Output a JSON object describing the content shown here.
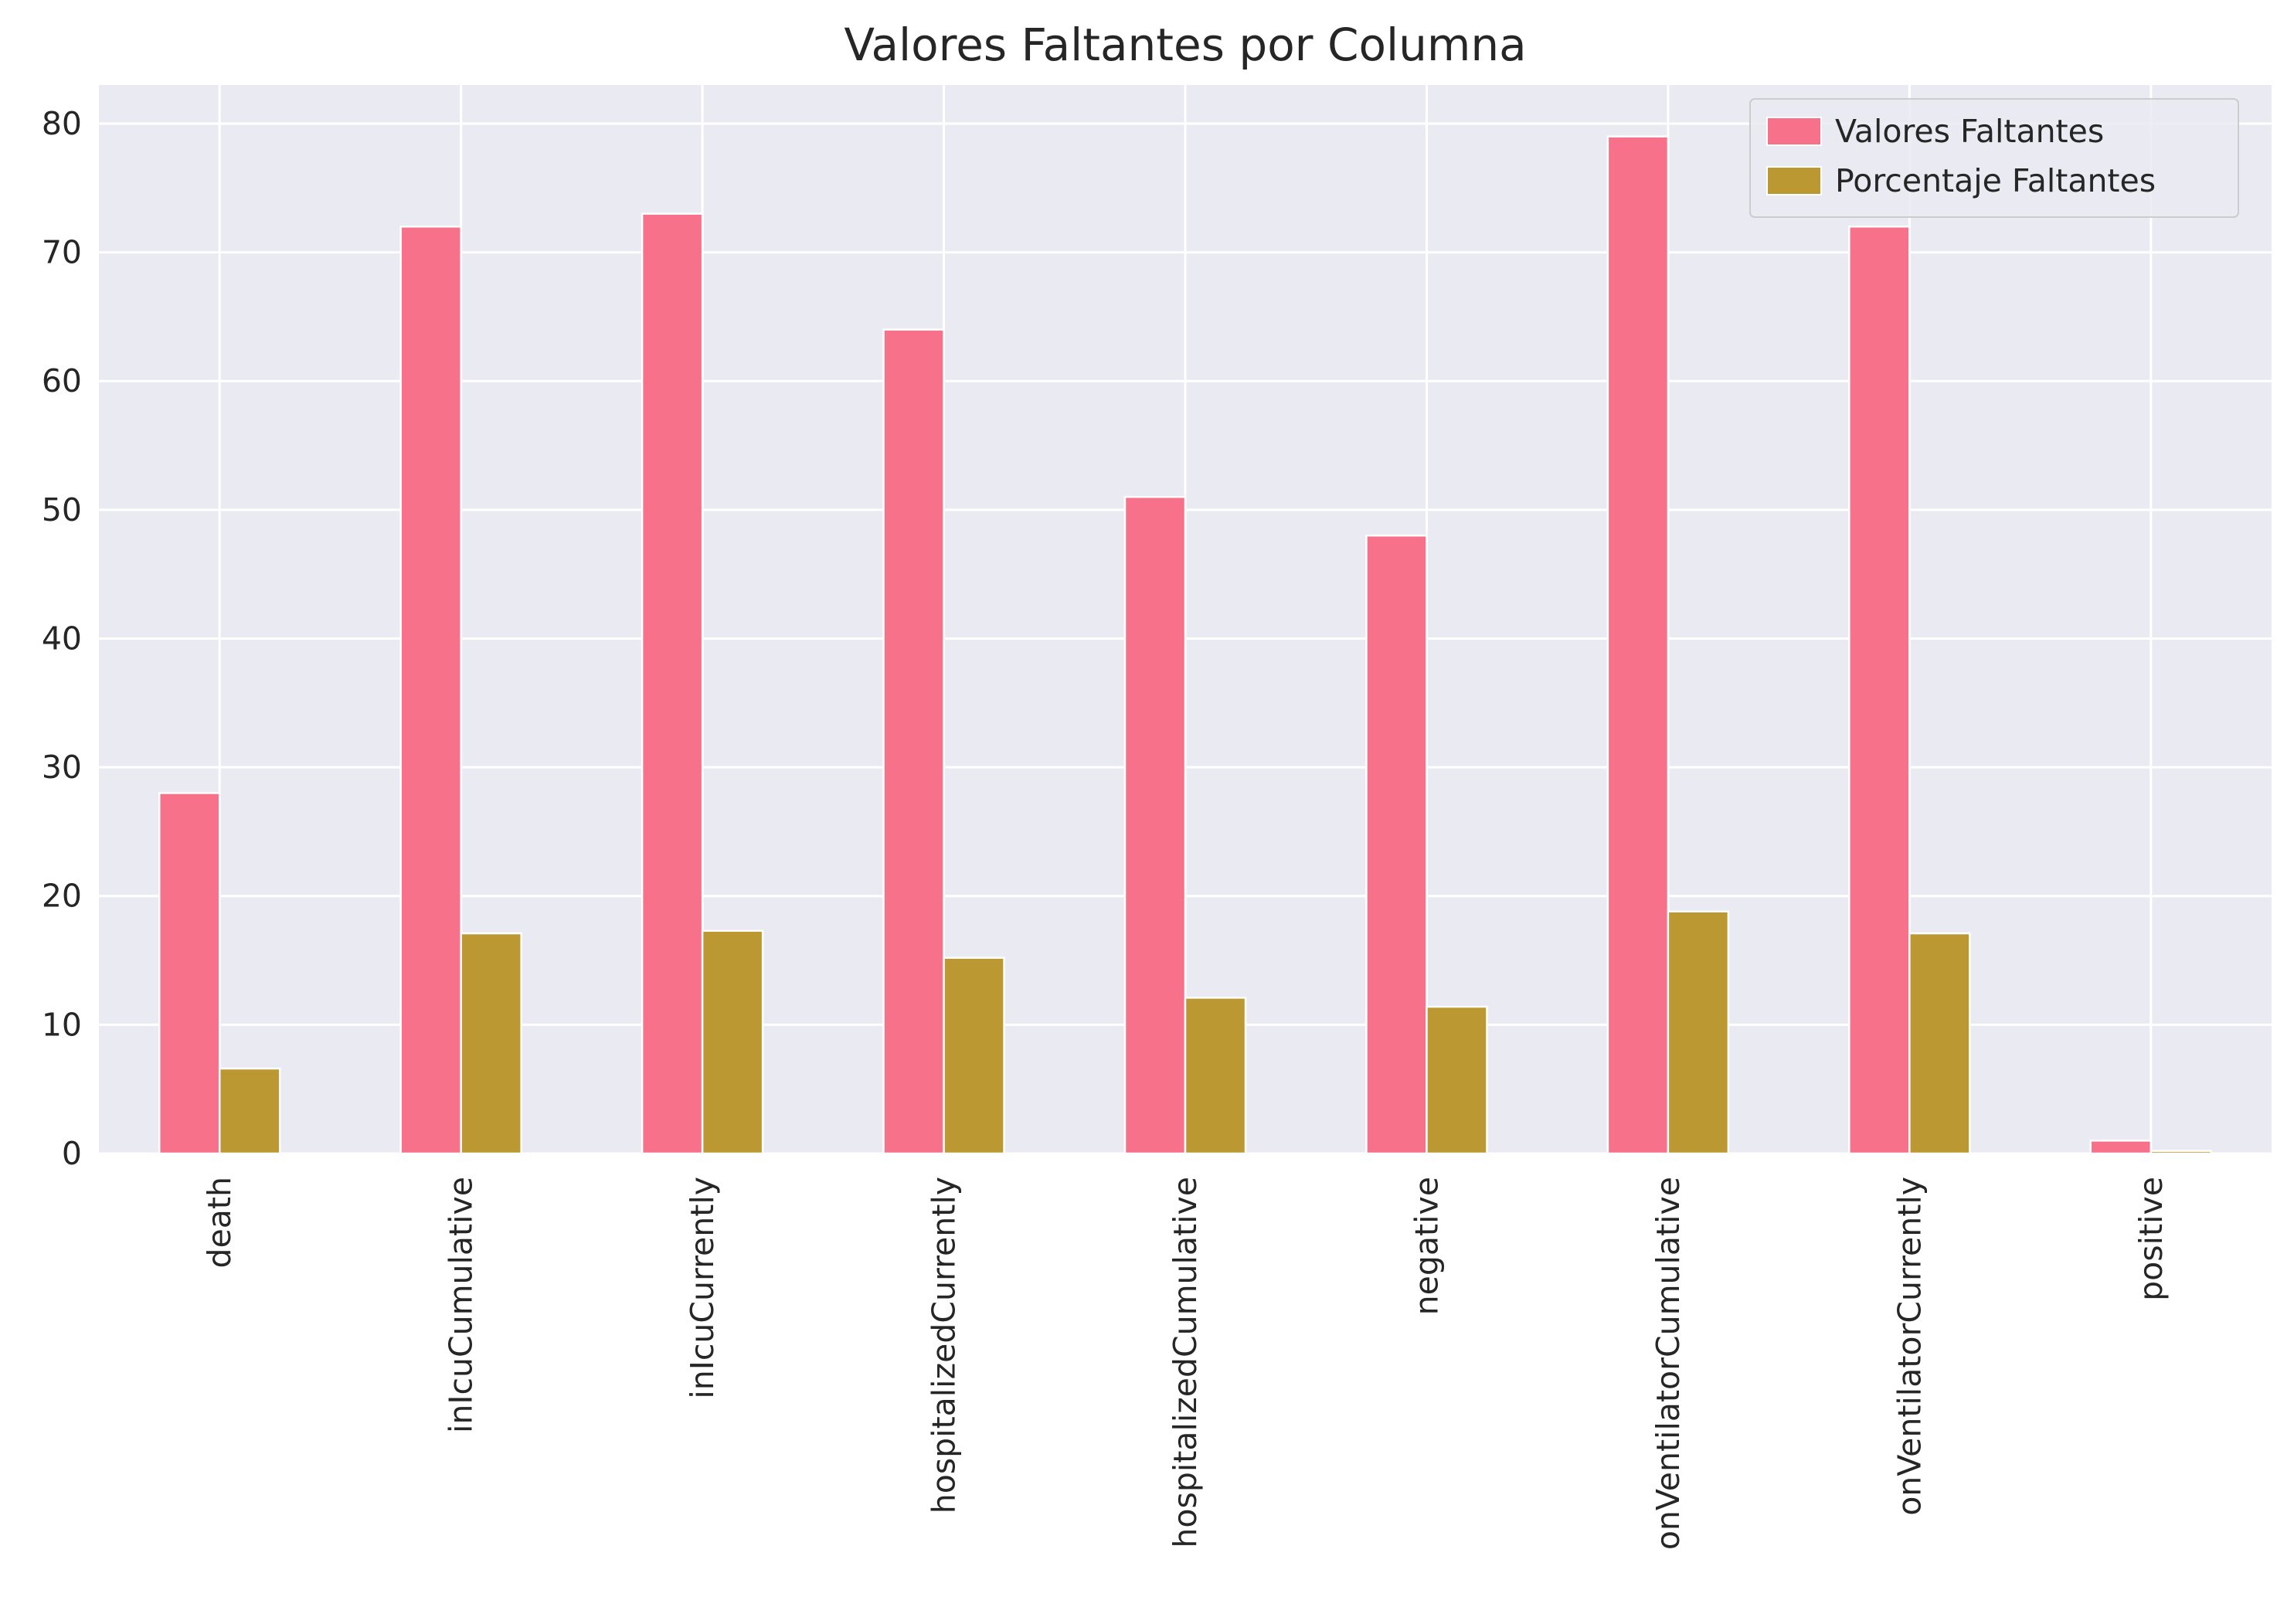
{
  "chart_data": {
    "type": "bar",
    "title": "Valores Faltantes por Columna",
    "xlabel": "",
    "ylabel": "",
    "categories": [
      "death",
      "inIcuCumulative",
      "inIcuCurrently",
      "hospitalizedCurrently",
      "hospitalizedCumulative",
      "negative",
      "onVentilatorCumulative",
      "onVentilatorCurrently",
      "positive"
    ],
    "series": [
      {
        "name": "Valores Faltantes",
        "color": "#f7718a",
        "values": [
          28,
          72,
          73,
          64,
          51,
          48,
          79,
          72,
          1
        ]
      },
      {
        "name": "Porcentaje Faltantes",
        "color": "#bb9832",
        "values": [
          6.6,
          17.1,
          17.3,
          15.2,
          12.1,
          11.4,
          18.8,
          17.1,
          0.2
        ]
      }
    ],
    "ylim": [
      0,
      83
    ],
    "yticks": [
      0,
      10,
      20,
      30,
      40,
      50,
      60,
      70,
      80
    ],
    "grid": true,
    "legend_position": "top-right",
    "background": "#eaeaf2"
  }
}
